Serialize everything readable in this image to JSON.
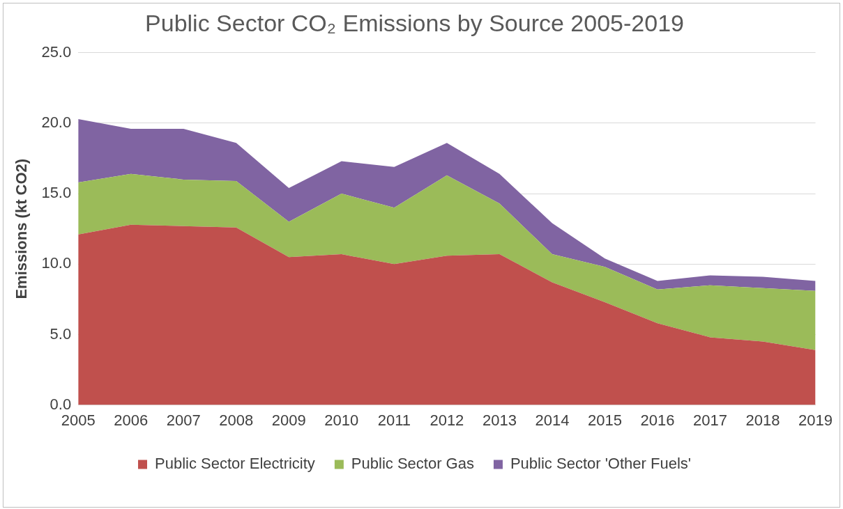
{
  "chart_data": {
    "type": "area",
    "title": "Public Sector CO₂ Emissions by Source 2005-2019",
    "ylabel": "Emissions (kt CO2)",
    "categories": [
      "2005",
      "2006",
      "2007",
      "2008",
      "2009",
      "2010",
      "2011",
      "2012",
      "2013",
      "2014",
      "2015",
      "2016",
      "2017",
      "2018",
      "2019"
    ],
    "series": [
      {
        "name": "Public Sector Electricity",
        "color": "#c0504d",
        "values": [
          12.1,
          12.8,
          12.7,
          12.6,
          10.5,
          10.7,
          10.0,
          10.6,
          10.7,
          8.7,
          7.3,
          5.8,
          4.8,
          4.5,
          3.9
        ]
      },
      {
        "name": "Public Sector Gas",
        "color": "#9bbb59",
        "values": [
          3.7,
          3.6,
          3.3,
          3.3,
          2.5,
          4.3,
          4.0,
          5.7,
          3.6,
          2.0,
          2.5,
          2.4,
          3.7,
          3.8,
          4.2
        ]
      },
      {
        "name": "Public Sector 'Other Fuels'",
        "color": "#8064a2",
        "values": [
          4.5,
          3.2,
          3.6,
          2.7,
          2.4,
          2.3,
          2.9,
          2.3,
          2.1,
          2.2,
          0.6,
          0.6,
          0.7,
          0.8,
          0.7
        ]
      }
    ],
    "stacked": true,
    "ylim": [
      0,
      25
    ],
    "yticks": [
      {
        "value": 0,
        "label": "0.0"
      },
      {
        "value": 5,
        "label": "5.0"
      },
      {
        "value": 10,
        "label": "10.0"
      },
      {
        "value": 15,
        "label": "15.0"
      },
      {
        "value": 20,
        "label": "20.0"
      },
      {
        "value": 25,
        "label": "25.0"
      }
    ],
    "grid": "y",
    "legend": "bottom",
    "marker": "none"
  }
}
